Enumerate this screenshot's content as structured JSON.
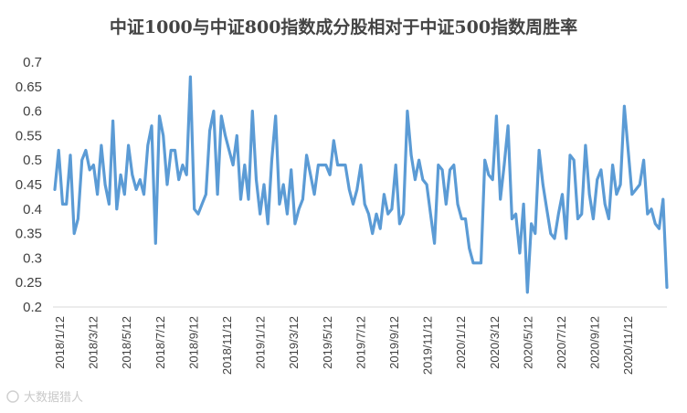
{
  "chart_data": {
    "type": "line",
    "title": "中证1000与中证800指数成分股相对于中证500指数周胜率",
    "xlabel": "",
    "ylabel": "",
    "ylim": [
      0.2,
      0.7
    ],
    "yticks": [
      "0.2",
      "0.25",
      "0.3",
      "0.35",
      "0.4",
      "0.45",
      "0.5",
      "0.55",
      "0.6",
      "0.65",
      "0.7"
    ],
    "xticks": [
      "2018/1/12",
      "2018/3/12",
      "2018/5/12",
      "2018/7/12",
      "2018/9/12",
      "2018/11/12",
      "2019/1/12",
      "2019/3/12",
      "2019/5/12",
      "2019/7/12",
      "2019/9/12",
      "2019/11/12",
      "2020/1/12",
      "2020/3/12",
      "2020/5/12",
      "2020/7/12",
      "2020/9/12",
      "2020/11/12"
    ],
    "grid": false,
    "legend": "none",
    "series": [
      {
        "color": "#5b9bd5",
        "values": [
          0.44,
          0.52,
          0.41,
          0.41,
          0.51,
          0.35,
          0.38,
          0.5,
          0.52,
          0.48,
          0.49,
          0.43,
          0.53,
          0.45,
          0.41,
          0.58,
          0.4,
          0.47,
          0.43,
          0.53,
          0.47,
          0.44,
          0.46,
          0.43,
          0.53,
          0.57,
          0.33,
          0.59,
          0.55,
          0.45,
          0.52,
          0.52,
          0.46,
          0.49,
          0.47,
          0.67,
          0.4,
          0.39,
          0.41,
          0.43,
          0.56,
          0.6,
          0.43,
          0.59,
          0.55,
          0.52,
          0.49,
          0.55,
          0.42,
          0.49,
          0.42,
          0.6,
          0.46,
          0.39,
          0.45,
          0.37,
          0.5,
          0.59,
          0.41,
          0.45,
          0.39,
          0.48,
          0.37,
          0.4,
          0.42,
          0.51,
          0.47,
          0.43,
          0.49,
          0.49,
          0.49,
          0.47,
          0.54,
          0.49,
          0.49,
          0.49,
          0.44,
          0.41,
          0.44,
          0.49,
          0.41,
          0.39,
          0.35,
          0.39,
          0.36,
          0.43,
          0.39,
          0.4,
          0.49,
          0.37,
          0.39,
          0.6,
          0.51,
          0.46,
          0.5,
          0.46,
          0.45,
          0.39,
          0.33,
          0.49,
          0.48,
          0.41,
          0.48,
          0.49,
          0.41,
          0.38,
          0.38,
          0.32,
          0.29,
          0.29,
          0.29,
          0.5,
          0.47,
          0.46,
          0.59,
          0.42,
          0.49,
          0.57,
          0.38,
          0.39,
          0.31,
          0.41,
          0.23,
          0.37,
          0.35,
          0.52,
          0.45,
          0.4,
          0.35,
          0.34,
          0.39,
          0.43,
          0.34,
          0.51,
          0.5,
          0.38,
          0.39,
          0.53,
          0.43,
          0.38,
          0.46,
          0.48,
          0.41,
          0.38,
          0.49,
          0.43,
          0.45,
          0.61,
          0.52,
          0.43,
          0.44,
          0.45,
          0.5,
          0.39,
          0.4,
          0.37,
          0.36,
          0.42,
          0.24
        ]
      }
    ]
  },
  "watermark": "大数据猎人"
}
